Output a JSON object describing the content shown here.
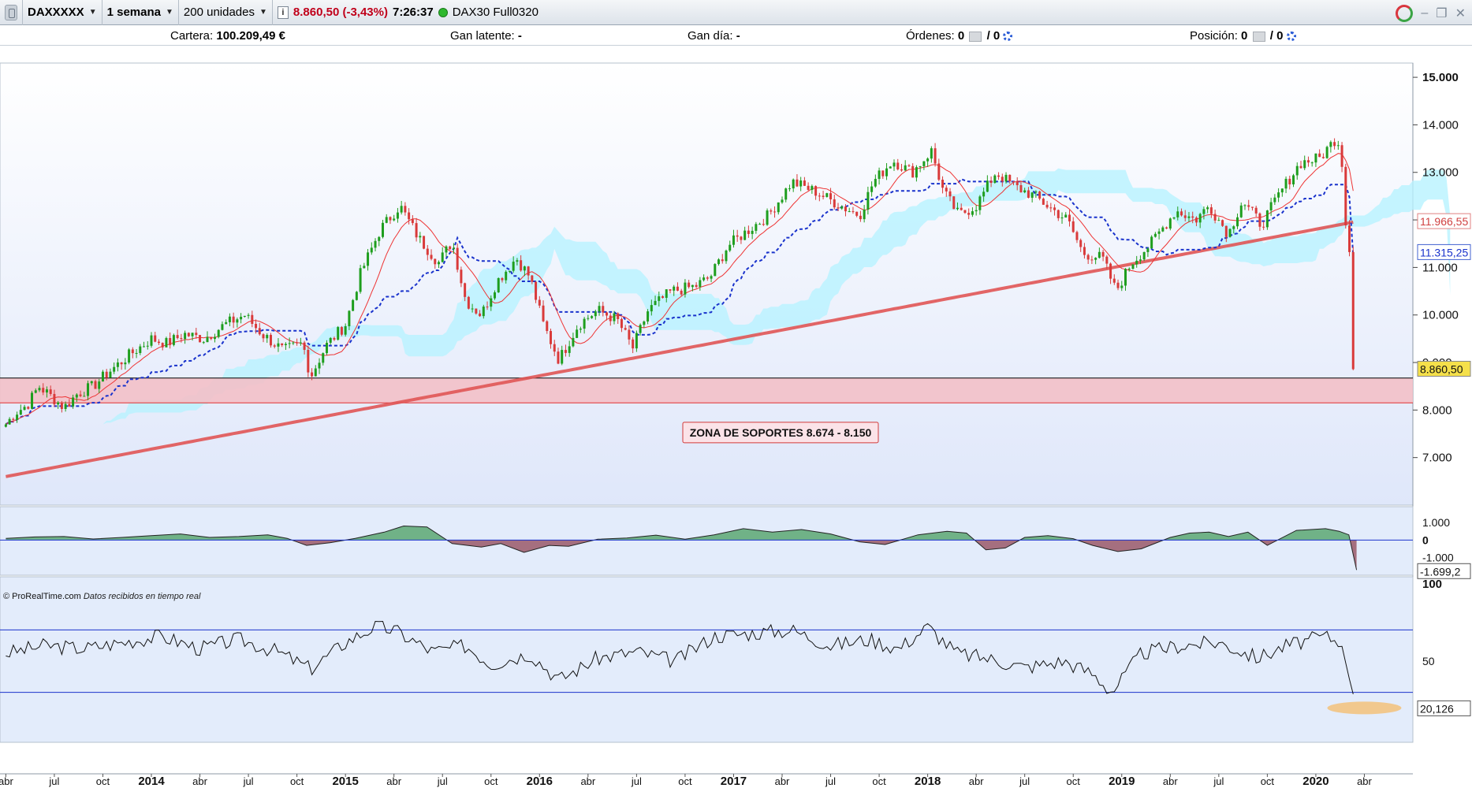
{
  "toolbar": {
    "instrument": "DAXXXXX",
    "period": "1 semana",
    "units": "200 unidades",
    "price": "8.860,50 (-3,43%)",
    "time": "7:26:37",
    "contract": "DAX30 Full0320"
  },
  "status": {
    "cartera_label": "Cartera:",
    "cartera_value": "100.209,49 €",
    "gan_latente_label": "Gan latente:",
    "gan_latente_value": "-",
    "gan_dia_label": "Gan día:",
    "gan_dia_value": "-",
    "ordenes_label": "Órdenes:",
    "ordenes_a": "0",
    "ordenes_b": "/ 0",
    "posicion_label": "Posición:",
    "posicion_a": "0",
    "posicion_b": "/ 0"
  },
  "copyright": "© ProRealTime.com",
  "copyright_note": "Datos recibidos en tiempo real",
  "colors": {
    "up": "#1e9e1e",
    "down": "#d93a3a",
    "sma": "#e05555",
    "kijun": "#1a33cc",
    "support_zone": "#f3c0c8",
    "kumo": "#b8f2ff",
    "panel_bg": "#e3ecfb"
  },
  "chart_data": [
    {
      "type": "candlestick",
      "instrument": "DAX30",
      "ylim": [
        6000,
        15300
      ],
      "y_ticks": [
        "15.000",
        "14.000",
        "13.000",
        "12.000",
        "11.000",
        "10.000",
        "9.000",
        "8.000",
        "7.000"
      ],
      "x_labels": [
        "abr",
        "jul",
        "oct",
        "2014",
        "abr",
        "jul",
        "oct",
        "2015",
        "abr",
        "jul",
        "oct",
        "2016",
        "abr",
        "jul",
        "oct",
        "2017",
        "abr",
        "jul",
        "oct",
        "2018",
        "abr",
        "jul",
        "oct",
        "2019",
        "abr",
        "jul",
        "oct",
        "2020",
        "abr"
      ],
      "close_path": [
        [
          2013.25,
          7700
        ],
        [
          2013.3,
          7950
        ],
        [
          2013.36,
          8100
        ],
        [
          2013.42,
          8500
        ],
        [
          2013.48,
          8300
        ],
        [
          2013.55,
          8050
        ],
        [
          2013.62,
          8350
        ],
        [
          2013.7,
          8500
        ],
        [
          2013.78,
          8800
        ],
        [
          2013.9,
          9200
        ],
        [
          2014.0,
          9500
        ],
        [
          2014.08,
          9400
        ],
        [
          2014.17,
          9600
        ],
        [
          2014.27,
          9500
        ],
        [
          2014.38,
          9800
        ],
        [
          2014.48,
          10000
        ],
        [
          2014.57,
          9600
        ],
        [
          2014.68,
          9250
        ],
        [
          2014.78,
          9400
        ],
        [
          2014.82,
          8700
        ],
        [
          2014.9,
          9350
        ],
        [
          2015.0,
          9800
        ],
        [
          2015.08,
          10900
        ],
        [
          2015.18,
          11800
        ],
        [
          2015.28,
          12300
        ],
        [
          2015.38,
          11600
        ],
        [
          2015.48,
          11100
        ],
        [
          2015.55,
          11550
        ],
        [
          2015.62,
          10300
        ],
        [
          2015.7,
          10000
        ],
        [
          2015.78,
          10700
        ],
        [
          2015.88,
          11200
        ],
        [
          2015.95,
          10800
        ],
        [
          2016.02,
          9800
        ],
        [
          2016.1,
          9050
        ],
        [
          2016.2,
          9800
        ],
        [
          2016.3,
          10100
        ],
        [
          2016.4,
          9900
        ],
        [
          2016.48,
          9300
        ],
        [
          2016.56,
          10100
        ],
        [
          2016.68,
          10500
        ],
        [
          2016.8,
          10600
        ],
        [
          2016.88,
          10800
        ],
        [
          2016.97,
          11450
        ],
        [
          2017.08,
          11800
        ],
        [
          2017.18,
          12100
        ],
        [
          2017.3,
          12800
        ],
        [
          2017.42,
          12600
        ],
        [
          2017.55,
          12300
        ],
        [
          2017.65,
          12100
        ],
        [
          2017.72,
          12800
        ],
        [
          2017.82,
          13250
        ],
        [
          2017.92,
          13000
        ],
        [
          2018.02,
          13450
        ],
        [
          2018.08,
          12600
        ],
        [
          2018.16,
          12100
        ],
        [
          2018.25,
          12300
        ],
        [
          2018.35,
          13000
        ],
        [
          2018.45,
          12700
        ],
        [
          2018.55,
          12500
        ],
        [
          2018.65,
          12200
        ],
        [
          2018.72,
          12000
        ],
        [
          2018.8,
          11300
        ],
        [
          2018.9,
          11200
        ],
        [
          2018.97,
          10500
        ],
        [
          2019.05,
          11100
        ],
        [
          2019.15,
          11500
        ],
        [
          2019.28,
          12200
        ],
        [
          2019.38,
          12000
        ],
        [
          2019.45,
          12300
        ],
        [
          2019.55,
          11700
        ],
        [
          2019.62,
          12400
        ],
        [
          2019.72,
          11900
        ],
        [
          2019.82,
          12600
        ],
        [
          2019.92,
          13200
        ],
        [
          2020.02,
          13300
        ],
        [
          2020.1,
          13700
        ],
        [
          2020.13,
          13450
        ],
        [
          2020.15,
          12000
        ],
        [
          2020.17,
          11400
        ],
        [
          2020.19,
          10900
        ],
        [
          2020.21,
          8860
        ]
      ],
      "last_price": "8.860,50",
      "sma_label": "11.966,55",
      "kijun_label": "11.315,25",
      "support_zone": {
        "from": 8150,
        "to": 8674
      },
      "annotation": "ZONA DE SOPORTES 8.674 - 8.150"
    },
    {
      "type": "area",
      "name": "oscillator",
      "y_ticks": [
        "1.000",
        "0",
        "-1.000"
      ],
      "last_value_label": "-1.699,2",
      "x": [
        2013.25,
        2013.4,
        2013.55,
        2013.7,
        2013.85,
        2014.0,
        2014.15,
        2014.3,
        2014.45,
        2014.6,
        2014.7,
        2014.8,
        2014.92,
        2015.05,
        2015.2,
        2015.3,
        2015.42,
        2015.55,
        2015.7,
        2015.8,
        2015.92,
        2016.05,
        2016.15,
        2016.3,
        2016.45,
        2016.6,
        2016.75,
        2016.9,
        2017.05,
        2017.2,
        2017.35,
        2017.5,
        2017.65,
        2017.78,
        2017.95,
        2018.1,
        2018.2,
        2018.3,
        2018.4,
        2018.5,
        2018.62,
        2018.75,
        2018.85,
        2018.98,
        2019.1,
        2019.25,
        2019.35,
        2019.45,
        2019.55,
        2019.65,
        2019.75,
        2019.9,
        2020.05,
        2020.12,
        2020.17,
        2020.21
      ],
      "values": [
        100,
        180,
        200,
        60,
        150,
        250,
        350,
        150,
        200,
        300,
        100,
        -300,
        -150,
        100,
        450,
        800,
        750,
        -200,
        -400,
        -200,
        -700,
        -300,
        -350,
        50,
        120,
        280,
        50,
        300,
        650,
        450,
        600,
        350,
        -100,
        -250,
        300,
        500,
        400,
        -550,
        -450,
        150,
        250,
        80,
        -300,
        -650,
        -500,
        150,
        400,
        450,
        200,
        450,
        -300,
        550,
        650,
        500,
        300,
        -1699
      ]
    },
    {
      "type": "line",
      "name": "rsi",
      "y_ticks": [
        "100",
        "50"
      ],
      "levels": [
        70,
        30
      ],
      "last_value_label": "20,126",
      "x": [
        2013.25,
        2013.45,
        2013.65,
        2013.85,
        2014.05,
        2014.25,
        2014.45,
        2014.65,
        2014.82,
        2015.0,
        2015.15,
        2015.25,
        2015.45,
        2015.62,
        2015.75,
        2015.95,
        2016.1,
        2016.3,
        2016.5,
        2016.7,
        2016.9,
        2017.1,
        2017.3,
        2017.5,
        2017.7,
        2017.85,
        2018.0,
        2018.15,
        2018.3,
        2018.5,
        2018.7,
        2018.85,
        2018.95,
        2019.1,
        2019.3,
        2019.5,
        2019.7,
        2019.85,
        2020.05,
        2020.13,
        2020.17,
        2020.21
      ],
      "values": [
        55,
        60,
        58,
        62,
        66,
        58,
        64,
        56,
        45,
        62,
        72,
        70,
        56,
        60,
        48,
        55,
        38,
        52,
        56,
        50,
        66,
        68,
        70,
        60,
        64,
        58,
        72,
        55,
        52,
        46,
        50,
        42,
        30,
        55,
        60,
        62,
        52,
        60,
        66,
        62,
        40,
        20
      ]
    }
  ]
}
